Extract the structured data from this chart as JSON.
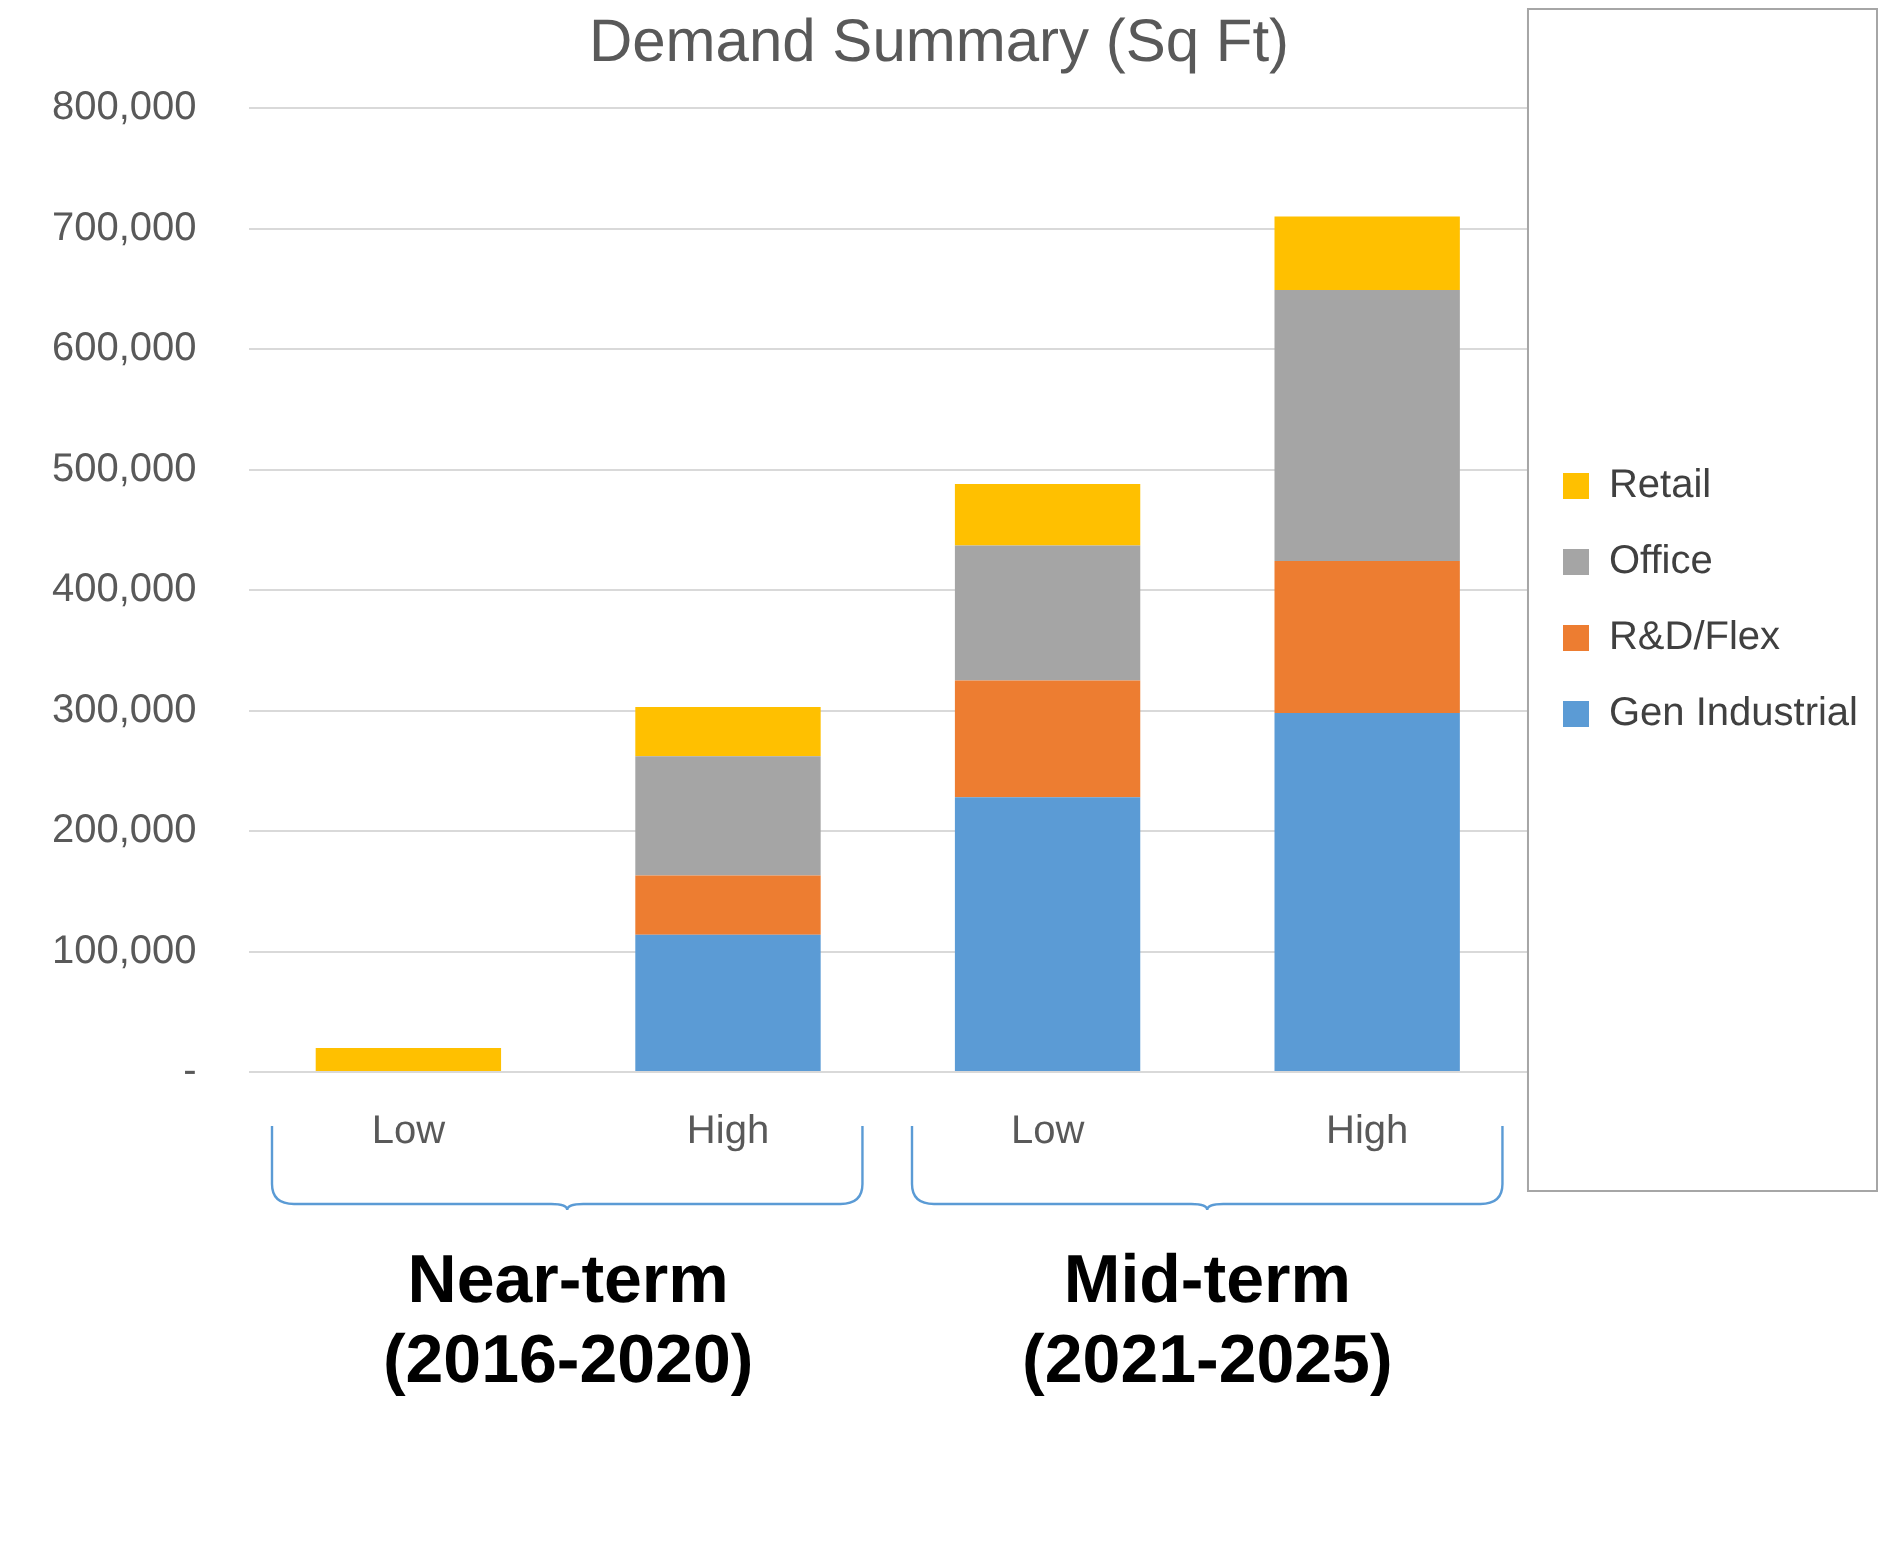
{
  "chart_data": {
    "type": "bar",
    "stacked": true,
    "title": "Demand Summary (Sq Ft)",
    "categories": [
      "Low",
      "High",
      "Low",
      "High"
    ],
    "series": [
      {
        "name": "Gen Industrial",
        "color": "#5b9bd5",
        "values": [
          null,
          114000,
          228000,
          298000
        ]
      },
      {
        "name": "R&D/Flex",
        "color": "#ed7d31",
        "values": [
          null,
          49000,
          97000,
          126000
        ]
      },
      {
        "name": "Office",
        "color": "#a5a5a5",
        "values": [
          null,
          99000,
          112000,
          225000
        ]
      },
      {
        "name": "Retail",
        "color": "#ffc000",
        "values": [
          20000,
          41000,
          51000,
          61000
        ]
      }
    ],
    "ylim": [
      0,
      800000
    ],
    "yticks": [
      {
        "value": 0,
        "label": "-"
      },
      {
        "value": 100000,
        "label": "100,000"
      },
      {
        "value": 200000,
        "label": "200,000"
      },
      {
        "value": 300000,
        "label": "300,000"
      },
      {
        "value": 400000,
        "label": "400,000"
      },
      {
        "value": 500000,
        "label": "500,000"
      },
      {
        "value": 600000,
        "label": "600,000"
      },
      {
        "value": 700000,
        "label": "700,000"
      },
      {
        "value": 800000,
        "label": "800,000"
      }
    ],
    "grid": "y",
    "legend": "right",
    "annotations": [
      "Near-term (2016-2020)",
      "Mid-term (2021-2025)"
    ]
  }
}
